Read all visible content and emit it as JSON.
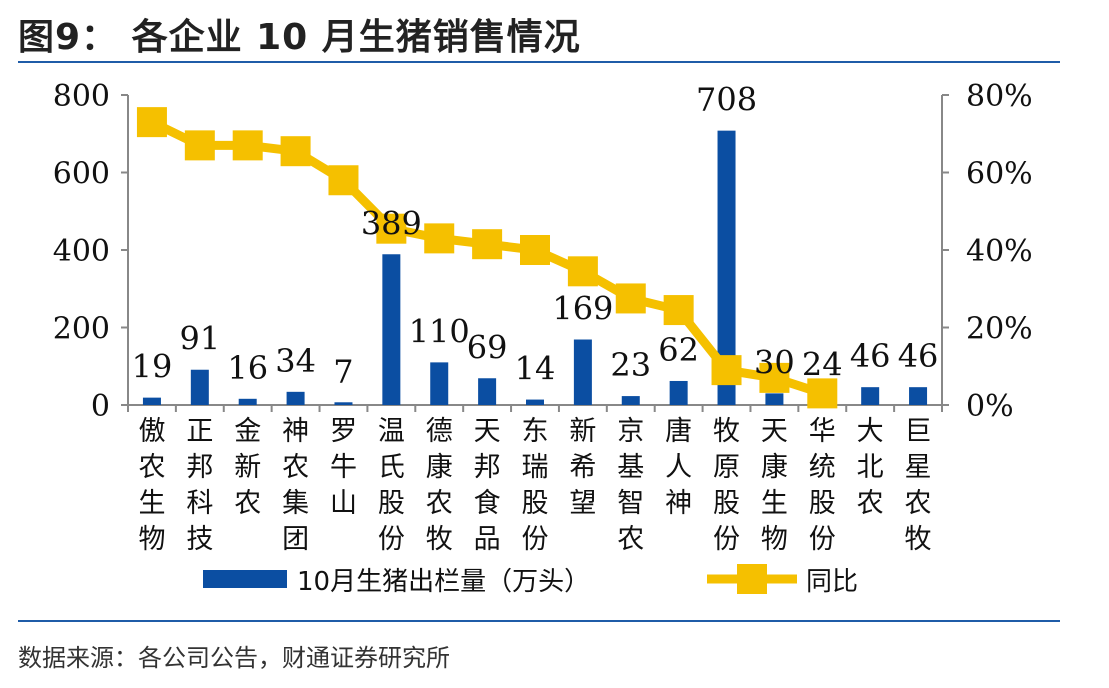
{
  "title": "图9： 各企业 10 月生猪销售情况",
  "source": "数据来源：各公司公告，财通证券研究所",
  "colors": {
    "bar": "#0b4ea2",
    "line": "#f5c000",
    "axis": "#888888",
    "rule": "#1f5ca8"
  },
  "chart_data": {
    "type": "bar",
    "categories": [
      "傲农生物",
      "正邦科技",
      "金新农",
      "神农集团",
      "罗牛山",
      "温氏股份",
      "德康农牧",
      "天邦食品",
      "东瑞股份",
      "新希望",
      "京基智农",
      "唐人神",
      "牧原股份",
      "天康生物",
      "华统股份",
      "大北农",
      "巨星农牧"
    ],
    "series": [
      {
        "name": "10月生猪出栏量（万头）",
        "type": "bar",
        "axis": "left",
        "values": [
          19,
          91,
          16,
          34,
          7,
          389,
          110,
          69,
          14,
          169,
          23,
          62,
          708,
          30,
          24,
          46,
          46
        ],
        "labels": [
          "19",
          "91",
          "16",
          "34",
          "7",
          "389",
          "110",
          "69",
          "14",
          "169",
          "23",
          "62",
          "708",
          "30",
          "24",
          "46",
          "46"
        ]
      },
      {
        "name": "同比",
        "type": "line",
        "axis": "right",
        "values": [
          0.73,
          0.67,
          0.67,
          0.655,
          0.58,
          0.455,
          0.43,
          0.415,
          0.4,
          0.345,
          0.275,
          0.245,
          0.09,
          0.07,
          0.03,
          null,
          null
        ]
      }
    ],
    "y_left": {
      "min": 0,
      "max": 800,
      "ticks": [
        "0",
        "200",
        "400",
        "600",
        "800"
      ]
    },
    "y_right": {
      "min": 0,
      "max": 0.8,
      "ticks": [
        "0%",
        "20%",
        "40%",
        "60%",
        "80%"
      ]
    },
    "legend_position": "bottom"
  }
}
